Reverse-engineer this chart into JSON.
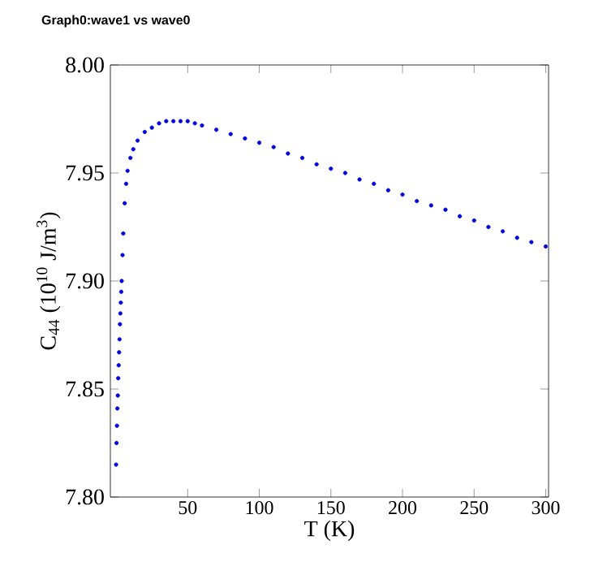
{
  "chart_data": {
    "type": "scatter",
    "title": "Graph0:wave1 vs wave0",
    "xlabel": "T (K)",
    "ylabel": "C$_{44}$ (10$^{10}$ J/m$^{3}$)",
    "xlim": [
      -4,
      302
    ],
    "ylim": [
      7.8,
      8.0
    ],
    "xticks": [
      50,
      100,
      150,
      200,
      250,
      300
    ],
    "yticks": [
      {
        "value": 7.8,
        "label": "7.80"
      },
      {
        "value": 7.85,
        "label": "7.85"
      },
      {
        "value": 7.9,
        "label": "7.90"
      },
      {
        "value": 7.95,
        "label": "7.95"
      },
      {
        "value": 8.0,
        "label": "8.00"
      }
    ],
    "marker": "circle",
    "grid": false,
    "series": [
      {
        "color": "#0000dd",
        "x": [
          0,
          0.3,
          0.6,
          0.9,
          1.2,
          1.5,
          1.8,
          2.1,
          2.4,
          2.7,
          3.0,
          3.3,
          3.6,
          3.9,
          4.5,
          5,
          6,
          7,
          8,
          10,
          12,
          15,
          20,
          25,
          30,
          35,
          40,
          45,
          50,
          55,
          60,
          70,
          80,
          90,
          100,
          110,
          120,
          130,
          140,
          150,
          160,
          170,
          180,
          190,
          200,
          210,
          220,
          230,
          240,
          250,
          260,
          270,
          280,
          290,
          300
        ],
        "values": [
          7.815,
          7.825,
          7.833,
          7.841,
          7.847,
          7.855,
          7.861,
          7.867,
          7.873,
          7.88,
          7.885,
          7.89,
          7.895,
          7.9,
          7.912,
          7.922,
          7.936,
          7.945,
          7.951,
          7.957,
          7.961,
          7.965,
          7.969,
          7.971,
          7.973,
          7.974,
          7.974,
          7.974,
          7.974,
          7.973,
          7.972,
          7.97,
          7.968,
          7.966,
          7.964,
          7.962,
          7.959,
          7.957,
          7.954,
          7.952,
          7.95,
          7.947,
          7.945,
          7.942,
          7.94,
          7.937,
          7.935,
          7.933,
          7.93,
          7.928,
          7.925,
          7.923,
          7.92,
          7.918,
          7.916
        ]
      }
    ]
  }
}
